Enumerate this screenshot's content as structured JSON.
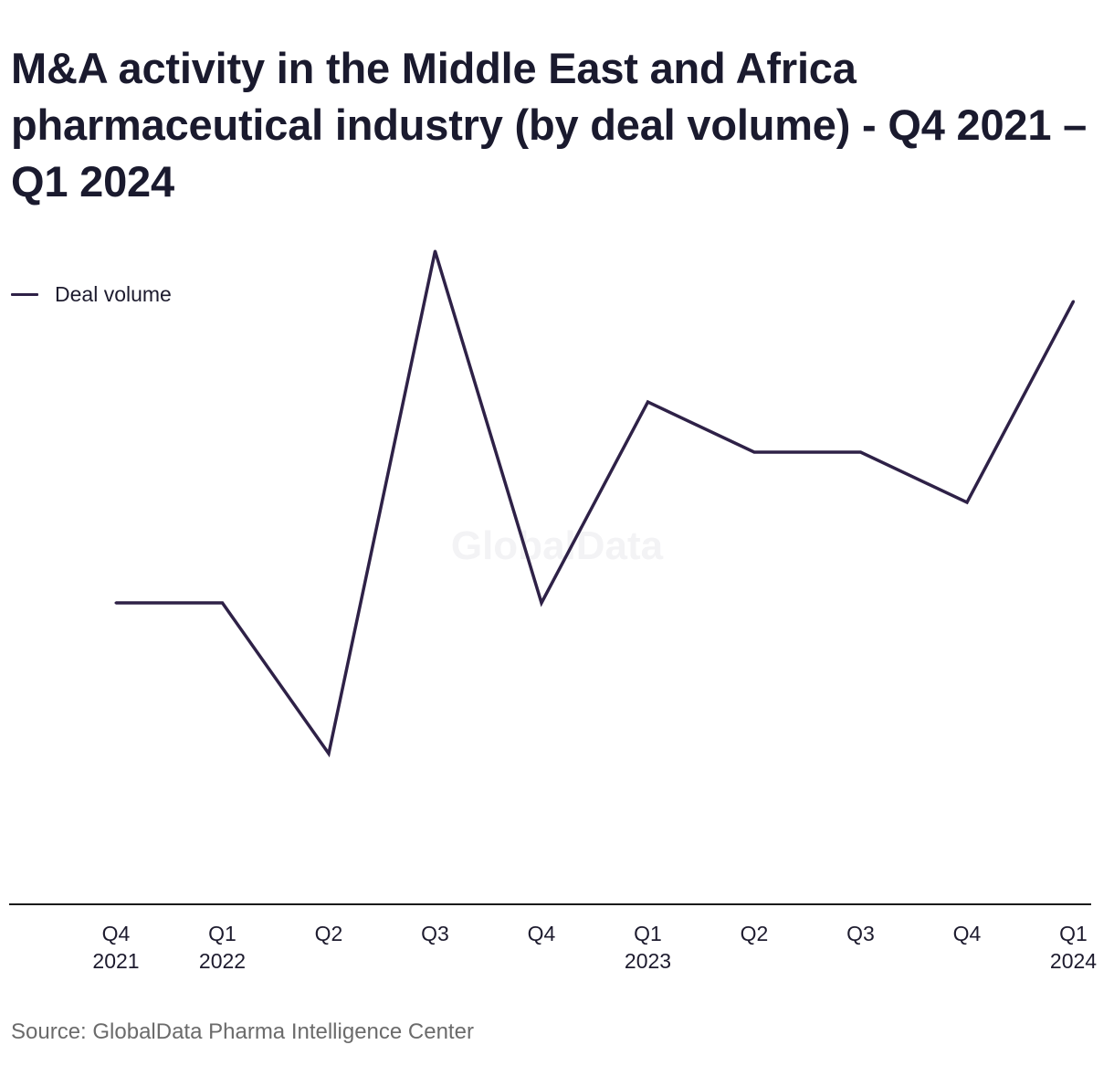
{
  "title": "M&A activity in the Middle East and Africa pharmaceutical industry (by deal volume) - Q4 2021 – Q1 2024",
  "legend": {
    "label": "Deal volume",
    "position": "top-left"
  },
  "watermark": "GlobalData",
  "source": "Source: GlobalData Pharma Intelligence Center",
  "colors": {
    "line": "#2e2147",
    "axis": "#1a1a1a",
    "text": "#1d1b2e",
    "watermark": "#f3f3f5",
    "source": "#6b6b6b"
  },
  "chart_data": {
    "type": "line",
    "title": "M&A activity in the Middle East and Africa pharmaceutical industry (by deal volume) - Q4 2021 – Q1 2024",
    "xlabel": "",
    "ylabel": "",
    "categories": [
      [
        "Q4",
        "2021"
      ],
      [
        "Q1",
        "2022"
      ],
      [
        "Q2"
      ],
      [
        "Q3"
      ],
      [
        "Q4"
      ],
      [
        "Q1",
        "2023"
      ],
      [
        "Q2"
      ],
      [
        "Q3"
      ],
      [
        "Q4"
      ],
      [
        "Q1",
        "2024"
      ]
    ],
    "series": [
      {
        "name": "Deal volume",
        "values": [
          6,
          6,
          3,
          13,
          6,
          10,
          9,
          9,
          8,
          12
        ]
      }
    ],
    "ylim": [
      0,
      18
    ],
    "y_axis_visible": false,
    "grid": false
  }
}
